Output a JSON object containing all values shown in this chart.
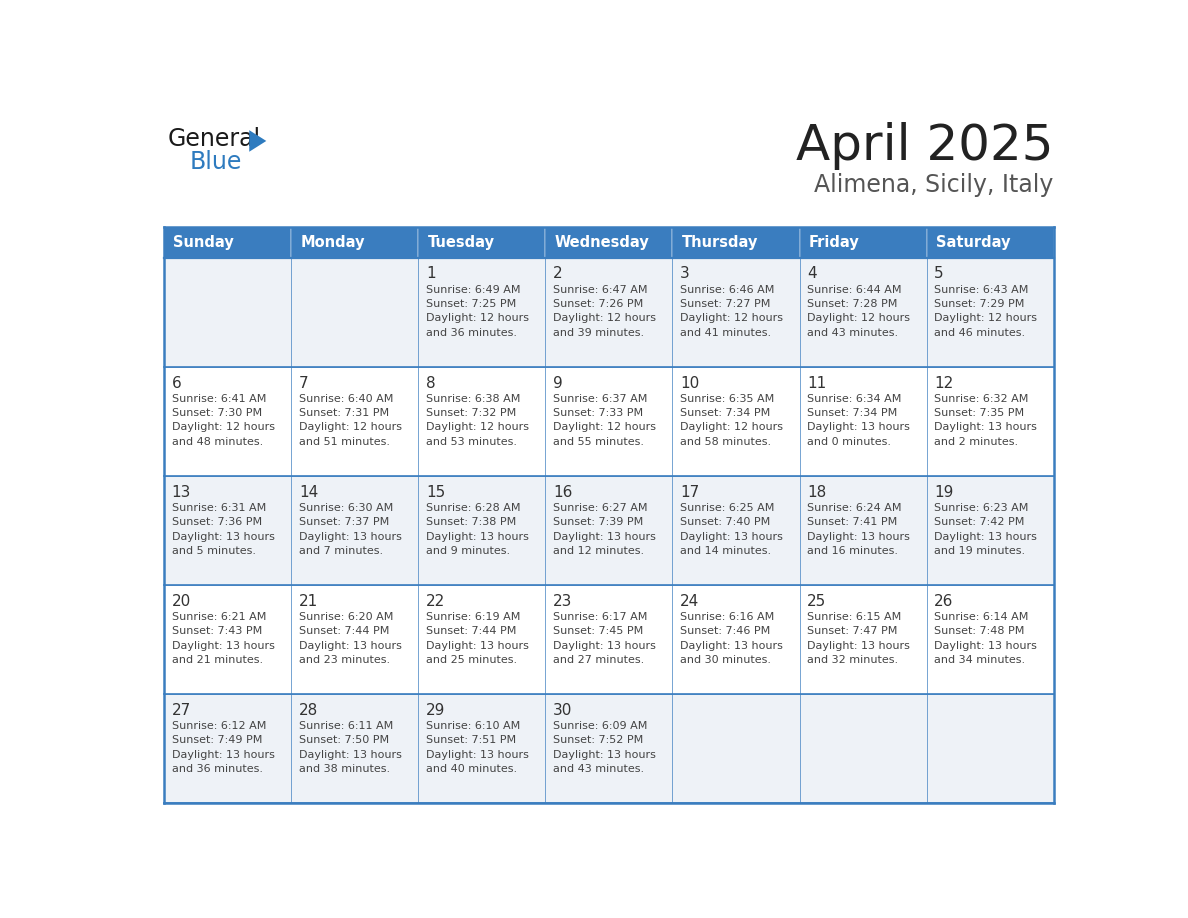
{
  "title": "April 2025",
  "subtitle": "Alimena, Sicily, Italy",
  "header_bg": "#3a7dbf",
  "header_text_color": "#ffffff",
  "cell_bg_even": "#eef2f7",
  "cell_bg_odd": "#ffffff",
  "border_color": "#3a7dbf",
  "day_names": [
    "Sunday",
    "Monday",
    "Tuesday",
    "Wednesday",
    "Thursday",
    "Friday",
    "Saturday"
  ],
  "title_color": "#222222",
  "subtitle_color": "#555555",
  "day_number_color": "#333333",
  "cell_text_color": "#444444",
  "logo_general_color": "#1a1a1a",
  "logo_blue_color": "#2e7bbf",
  "weeks": [
    [
      {
        "day": "",
        "sunrise": "",
        "sunset": "",
        "daylight": ""
      },
      {
        "day": "",
        "sunrise": "",
        "sunset": "",
        "daylight": ""
      },
      {
        "day": "1",
        "sunrise": "6:49 AM",
        "sunset": "7:25 PM",
        "daylight": "12 hours\nand 36 minutes."
      },
      {
        "day": "2",
        "sunrise": "6:47 AM",
        "sunset": "7:26 PM",
        "daylight": "12 hours\nand 39 minutes."
      },
      {
        "day": "3",
        "sunrise": "6:46 AM",
        "sunset": "7:27 PM",
        "daylight": "12 hours\nand 41 minutes."
      },
      {
        "day": "4",
        "sunrise": "6:44 AM",
        "sunset": "7:28 PM",
        "daylight": "12 hours\nand 43 minutes."
      },
      {
        "day": "5",
        "sunrise": "6:43 AM",
        "sunset": "7:29 PM",
        "daylight": "12 hours\nand 46 minutes."
      }
    ],
    [
      {
        "day": "6",
        "sunrise": "6:41 AM",
        "sunset": "7:30 PM",
        "daylight": "12 hours\nand 48 minutes."
      },
      {
        "day": "7",
        "sunrise": "6:40 AM",
        "sunset": "7:31 PM",
        "daylight": "12 hours\nand 51 minutes."
      },
      {
        "day": "8",
        "sunrise": "6:38 AM",
        "sunset": "7:32 PM",
        "daylight": "12 hours\nand 53 minutes."
      },
      {
        "day": "9",
        "sunrise": "6:37 AM",
        "sunset": "7:33 PM",
        "daylight": "12 hours\nand 55 minutes."
      },
      {
        "day": "10",
        "sunrise": "6:35 AM",
        "sunset": "7:34 PM",
        "daylight": "12 hours\nand 58 minutes."
      },
      {
        "day": "11",
        "sunrise": "6:34 AM",
        "sunset": "7:34 PM",
        "daylight": "13 hours\nand 0 minutes."
      },
      {
        "day": "12",
        "sunrise": "6:32 AM",
        "sunset": "7:35 PM",
        "daylight": "13 hours\nand 2 minutes."
      }
    ],
    [
      {
        "day": "13",
        "sunrise": "6:31 AM",
        "sunset": "7:36 PM",
        "daylight": "13 hours\nand 5 minutes."
      },
      {
        "day": "14",
        "sunrise": "6:30 AM",
        "sunset": "7:37 PM",
        "daylight": "13 hours\nand 7 minutes."
      },
      {
        "day": "15",
        "sunrise": "6:28 AM",
        "sunset": "7:38 PM",
        "daylight": "13 hours\nand 9 minutes."
      },
      {
        "day": "16",
        "sunrise": "6:27 AM",
        "sunset": "7:39 PM",
        "daylight": "13 hours\nand 12 minutes."
      },
      {
        "day": "17",
        "sunrise": "6:25 AM",
        "sunset": "7:40 PM",
        "daylight": "13 hours\nand 14 minutes."
      },
      {
        "day": "18",
        "sunrise": "6:24 AM",
        "sunset": "7:41 PM",
        "daylight": "13 hours\nand 16 minutes."
      },
      {
        "day": "19",
        "sunrise": "6:23 AM",
        "sunset": "7:42 PM",
        "daylight": "13 hours\nand 19 minutes."
      }
    ],
    [
      {
        "day": "20",
        "sunrise": "6:21 AM",
        "sunset": "7:43 PM",
        "daylight": "13 hours\nand 21 minutes."
      },
      {
        "day": "21",
        "sunrise": "6:20 AM",
        "sunset": "7:44 PM",
        "daylight": "13 hours\nand 23 minutes."
      },
      {
        "day": "22",
        "sunrise": "6:19 AM",
        "sunset": "7:44 PM",
        "daylight": "13 hours\nand 25 minutes."
      },
      {
        "day": "23",
        "sunrise": "6:17 AM",
        "sunset": "7:45 PM",
        "daylight": "13 hours\nand 27 minutes."
      },
      {
        "day": "24",
        "sunrise": "6:16 AM",
        "sunset": "7:46 PM",
        "daylight": "13 hours\nand 30 minutes."
      },
      {
        "day": "25",
        "sunrise": "6:15 AM",
        "sunset": "7:47 PM",
        "daylight": "13 hours\nand 32 minutes."
      },
      {
        "day": "26",
        "sunrise": "6:14 AM",
        "sunset": "7:48 PM",
        "daylight": "13 hours\nand 34 minutes."
      }
    ],
    [
      {
        "day": "27",
        "sunrise": "6:12 AM",
        "sunset": "7:49 PM",
        "daylight": "13 hours\nand 36 minutes."
      },
      {
        "day": "28",
        "sunrise": "6:11 AM",
        "sunset": "7:50 PM",
        "daylight": "13 hours\nand 38 minutes."
      },
      {
        "day": "29",
        "sunrise": "6:10 AM",
        "sunset": "7:51 PM",
        "daylight": "13 hours\nand 40 minutes."
      },
      {
        "day": "30",
        "sunrise": "6:09 AM",
        "sunset": "7:52 PM",
        "daylight": "13 hours\nand 43 minutes."
      },
      {
        "day": "",
        "sunrise": "",
        "sunset": "",
        "daylight": ""
      },
      {
        "day": "",
        "sunrise": "",
        "sunset": "",
        "daylight": ""
      },
      {
        "day": "",
        "sunrise": "",
        "sunset": "",
        "daylight": ""
      }
    ]
  ]
}
